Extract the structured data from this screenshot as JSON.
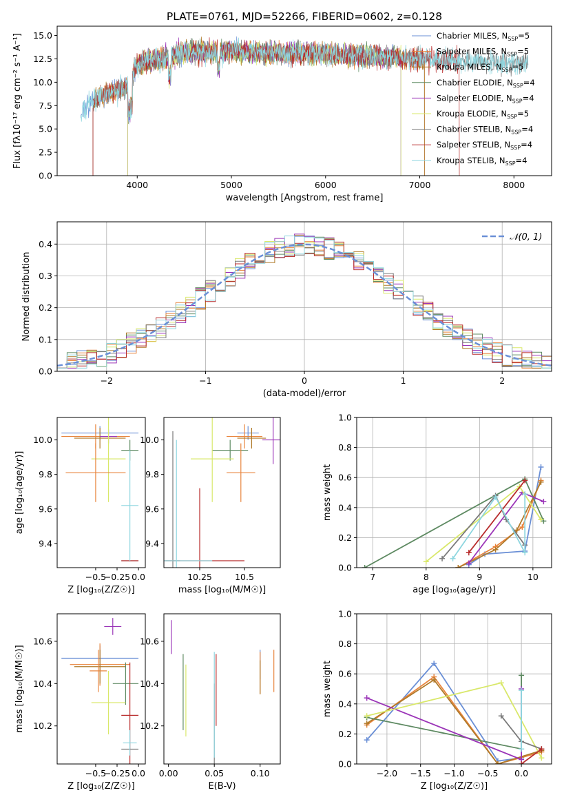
{
  "figure": {
    "title": "PLATE=0761, MJD=52266, FIBERID=0602, z=0.128"
  },
  "colors": {
    "Chabrier MILES": "#6a8fd6",
    "Salpeter MILES": "#e8843c",
    "Kroupa MILES": "#b07a2a",
    "Chabrier ELODIE": "#5e8a62",
    "Salpeter ELODIE": "#9b35b8",
    "Kroupa ELODIE": "#d9e86a",
    "Chabrier STELIB": "#7a7a7a",
    "Salpeter STELIB": "#b82c2c",
    "Kroupa STELIB": "#8ed6df",
    "normal_curve": "#6a8fd6"
  },
  "chart_data": [
    {
      "id": "spectrum",
      "type": "line",
      "xlabel": "wavelength [Angstrom, rest frame]",
      "ylabel": "Flux [fλ10⁻¹⁷ erg cm⁻² s⁻¹ A⁻¹]",
      "xlim": [
        3150,
        8400
      ],
      "ylim": [
        0,
        16
      ],
      "xticks": [
        4000,
        5000,
        6000,
        7000,
        8000
      ],
      "yticks": [
        0.0,
        2.5,
        5.0,
        7.5,
        10.0,
        12.5,
        15.0
      ],
      "legend_position": "upper-right",
      "series": [
        {
          "name": "Chabrier MILES, N_SSP=5",
          "x_range": [
            3400,
            7050
          ]
        },
        {
          "name": "Salpeter MILES, N_SSP=5",
          "x_range": [
            3530,
            7050
          ]
        },
        {
          "name": "Kroupa MILES, N_SSP=5",
          "x_range": [
            3530,
            7050
          ]
        },
        {
          "name": "Chabrier ELODIE, N_SSP=4",
          "x_range": [
            3900,
            6800
          ]
        },
        {
          "name": "Salpeter ELODIE, N_SSP=4",
          "x_range": [
            3900,
            6800
          ]
        },
        {
          "name": "Kroupa ELODIE, N_SSP=5",
          "x_range": [
            3900,
            6800
          ]
        },
        {
          "name": "Chabrier STELIB, N_SSP=4",
          "x_range": [
            3530,
            8150
          ]
        },
        {
          "name": "Salpeter STELIB, N_SSP=4",
          "x_range": [
            3530,
            7420
          ]
        },
        {
          "name": "Kroupa STELIB, N_SSP=4",
          "x_range": [
            3400,
            8150
          ]
        }
      ],
      "approx_continuum": [
        [
          3400,
          7.0
        ],
        [
          3600,
          8.5
        ],
        [
          3900,
          9.5
        ],
        [
          4000,
          12.0
        ],
        [
          4300,
          12.5
        ],
        [
          4500,
          13.2
        ],
        [
          5000,
          13.3
        ],
        [
          6000,
          13.0
        ],
        [
          7000,
          12.5
        ],
        [
          8000,
          12.0
        ]
      ]
    },
    {
      "id": "residual_hist",
      "type": "histogram",
      "xlabel": "(data-model)/error",
      "ylabel": "Normed distribution",
      "xlim": [
        -2.5,
        2.5
      ],
      "ylim": [
        0,
        0.47
      ],
      "xticks": [
        -2,
        -1,
        0,
        1,
        2
      ],
      "yticks": [
        0.0,
        0.1,
        0.2,
        0.3,
        0.4
      ],
      "grid": true,
      "legend_position": "upper-right",
      "normal_label": "𝒩(0, 1)",
      "bin_width": 0.1,
      "series_names": [
        "Chabrier MILES",
        "Salpeter MILES",
        "Kroupa MILES",
        "Chabrier ELODIE",
        "Salpeter ELODIE",
        "Kroupa ELODIE",
        "Chabrier STELIB",
        "Salpeter STELIB",
        "Kroupa STELIB"
      ]
    },
    {
      "id": "age_vs_Z",
      "type": "errorbar",
      "xlabel": "Z [log₁₀(Z/Z☉)]",
      "ylabel": "age  [log₁₀(age/yr)]",
      "xlim": [
        -0.95,
        0.08
      ],
      "ylim": [
        9.26,
        10.13
      ],
      "xticks": [
        -0.5,
        -0.25,
        0.0
      ],
      "xticklabels": [
        "−0.5",
        "−0.25",
        "0.0"
      ],
      "yticks": [
        9.4,
        9.6,
        9.8,
        10.0
      ],
      "points": [
        {
          "series": "Chabrier MILES",
          "x": -0.45,
          "xerr": 0.45,
          "y": 10.04,
          "yerr": 0.04
        },
        {
          "series": "Salpeter MILES",
          "x": -0.5,
          "xerr": 0.4,
          "y": 10.02,
          "yerr": 0.07
        },
        {
          "series": "Kroupa MILES",
          "x": -0.45,
          "xerr": 0.3,
          "y": 10.01,
          "yerr": 0.06
        },
        {
          "series": "Chabrier ELODIE",
          "x": -0.1,
          "xerr": 0.1,
          "y": 9.94,
          "yerr": 0.06
        },
        {
          "series": "Salpeter ELODIE",
          "x": -0.35,
          "xerr": 0.1,
          "y": 10.02,
          "yerr": 0.04
        },
        {
          "series": "Kroupa ELODIE",
          "x": -0.35,
          "xerr": 0.2,
          "y": 9.89,
          "yerr": 0.25
        },
        {
          "series": "Chabrier STELIB",
          "x": -0.1,
          "xerr": 0.1,
          "y": 9.3,
          "yerr": 0.0
        },
        {
          "series": "Salpeter STELIB",
          "x": -0.1,
          "xerr": 0.1,
          "y": 9.3,
          "yerr": 0.0
        },
        {
          "series": "Kroupa STELIB",
          "x": -0.1,
          "xerr": 0.1,
          "y": 9.62,
          "yerr": 0.32
        },
        {
          "series": "Salpeter MILES",
          "x": -0.5,
          "xerr": 0.35,
          "y": 9.81,
          "yerr": 0.17
        }
      ]
    },
    {
      "id": "age_vs_mass",
      "type": "errorbar",
      "xlabel": "mass [log₁₀(M/M☉)]",
      "xlim": [
        10.05,
        10.7
      ],
      "ylim": [
        9.26,
        10.13
      ],
      "xticks": [
        10.25,
        10.5
      ],
      "yticks": [
        9.4,
        9.6,
        9.8,
        10.0
      ],
      "points": [
        {
          "series": "Chabrier MILES",
          "x": 10.52,
          "xerr": 0.06,
          "y": 10.04,
          "yerr": 0.04
        },
        {
          "series": "Salpeter MILES",
          "x": 10.5,
          "xerr": 0.1,
          "y": 10.02,
          "yerr": 0.07
        },
        {
          "series": "Kroupa MILES",
          "x": 10.54,
          "xerr": 0.08,
          "y": 10.01,
          "yerr": 0.06
        },
        {
          "series": "Chabrier ELODIE",
          "x": 10.42,
          "xerr": 0.1,
          "y": 9.94,
          "yerr": 0.06
        },
        {
          "series": "Salpeter ELODIE",
          "x": 10.66,
          "xerr": 0.06,
          "y": 10.0,
          "yerr": 0.14
        },
        {
          "series": "Kroupa ELODIE",
          "x": 10.32,
          "xerr": 0.12,
          "y": 9.89,
          "yerr": 0.25
        },
        {
          "series": "Chabrier STELIB",
          "x": 10.1,
          "xerr": 0.04,
          "y": 9.3,
          "yerr": 0.75
        },
        {
          "series": "Salpeter STELIB",
          "x": 10.25,
          "xerr": 0.25,
          "y": 9.3,
          "yerr": 0.42
        },
        {
          "series": "Kroupa STELIB",
          "x": 10.12,
          "xerr": 0.2,
          "y": 9.3,
          "yerr": 0.7
        },
        {
          "series": "Salpeter MILES",
          "x": 10.48,
          "xerr": 0.08,
          "y": 9.81,
          "yerr": 0.17
        }
      ]
    },
    {
      "id": "weights_vs_age",
      "type": "line",
      "xlabel": "age  [log₁₀(age/yr)]",
      "ylabel": "mass weight",
      "xlim": [
        6.7,
        10.35
      ],
      "ylim": [
        0,
        1
      ],
      "xticks": [
        7,
        8,
        9,
        10
      ],
      "yticks": [
        0.0,
        0.2,
        0.4,
        0.6,
        0.8,
        1.0
      ],
      "grid": true,
      "series": [
        {
          "name": "Chabrier MILES",
          "x": [
            10.15,
            9.85,
            9.1,
            8.8
          ],
          "y": [
            0.67,
            0.11,
            0.09,
            0.02
          ]
        },
        {
          "name": "Salpeter MILES",
          "x": [
            10.15,
            9.8,
            9.3,
            8.6
          ],
          "y": [
            0.58,
            0.27,
            0.14,
            0.0
          ]
        },
        {
          "name": "Kroupa MILES",
          "x": [
            10.15,
            9.7,
            9.3,
            8.6
          ],
          "y": [
            0.57,
            0.25,
            0.12,
            0.0
          ]
        },
        {
          "name": "Chabrier ELODIE",
          "x": [
            6.85,
            9.85,
            10.2
          ],
          "y": [
            0.0,
            0.59,
            0.31
          ]
        },
        {
          "name": "Salpeter ELODIE",
          "x": [
            8.8,
            9.8,
            10.2
          ],
          "y": [
            0.03,
            0.5,
            0.44
          ]
        },
        {
          "name": "Kroupa ELODIE",
          "x": [
            8.0,
            9.75,
            10.15
          ],
          "y": [
            0.04,
            0.54,
            0.32
          ]
        },
        {
          "name": "Chabrier STELIB",
          "x": [
            8.3,
            9.3,
            9.5,
            9.85
          ],
          "y": [
            0.06,
            0.48,
            0.32,
            0.15
          ]
        },
        {
          "name": "Salpeter STELIB",
          "x": [
            8.8,
            9.85
          ],
          "y": [
            0.1,
            0.58
          ]
        },
        {
          "name": "Kroupa STELIB",
          "x": [
            8.5,
            9.3,
            9.85,
            9.85
          ],
          "y": [
            0.06,
            0.47,
            0.1,
            0.49
          ]
        }
      ]
    },
    {
      "id": "mass_vs_Z",
      "type": "errorbar",
      "xlabel": "Z [log₁₀(Z/Z☉)]",
      "ylabel": "mass [log₁₀(M/M☉)]",
      "xlim": [
        -0.95,
        0.08
      ],
      "ylim": [
        10.02,
        10.73
      ],
      "xticks": [
        -0.5,
        -0.25,
        0.0
      ],
      "xticklabels": [
        "−0.5",
        "−0.25",
        "0.0"
      ],
      "yticks": [
        10.2,
        10.4,
        10.6
      ],
      "points": [
        {
          "series": "Chabrier MILES",
          "x": -0.45,
          "xerr": 0.45,
          "y": 10.52,
          "yerr": 0.06
        },
        {
          "series": "Salpeter MILES",
          "x": -0.45,
          "xerr": 0.35,
          "y": 10.49,
          "yerr": 0.1
        },
        {
          "series": "Kroupa MILES",
          "x": -0.45,
          "xerr": 0.3,
          "y": 10.48,
          "yerr": 0.08
        },
        {
          "series": "Chabrier ELODIE",
          "x": -0.15,
          "xerr": 0.15,
          "y": 10.4,
          "yerr": 0.1
        },
        {
          "series": "Salpeter ELODIE",
          "x": -0.3,
          "xerr": 0.1,
          "y": 10.67,
          "yerr": 0.04
        },
        {
          "series": "Kroupa ELODIE",
          "x": -0.35,
          "xerr": 0.2,
          "y": 10.31,
          "yerr": 0.15
        },
        {
          "series": "Chabrier STELIB",
          "x": -0.1,
          "xerr": 0.1,
          "y": 10.09,
          "yerr": 0.0
        },
        {
          "series": "Salpeter STELIB",
          "x": -0.1,
          "xerr": 0.1,
          "y": 10.25,
          "yerr": 0.25
        },
        {
          "series": "Kroupa STELIB",
          "x": -0.1,
          "xerr": 0.08,
          "y": 10.12,
          "yerr": 0.06
        },
        {
          "series": "Salpeter MILES",
          "x": -0.47,
          "xerr": 0.1,
          "y": 10.46,
          "yerr": 0.1
        }
      ]
    },
    {
      "id": "mass_vs_ebv",
      "type": "errorbar",
      "xlabel": "E(B-V)",
      "xlim": [
        -0.005,
        0.122
      ],
      "ylim": [
        10.02,
        10.73
      ],
      "xticks": [
        0.0,
        0.05,
        0.1
      ],
      "xticklabels": [
        "0.00",
        "0.05",
        "0.10"
      ],
      "yticks": [
        10.2,
        10.4,
        10.6
      ],
      "points": [
        {
          "series": "Salpeter ELODIE",
          "x": 0.003,
          "y": 10.62,
          "yerr": 0.08
        },
        {
          "series": "Chabrier ELODIE",
          "x": 0.016,
          "y": 10.36,
          "yerr": 0.18
        },
        {
          "series": "Kroupa ELODIE",
          "x": 0.019,
          "y": 10.32,
          "yerr": 0.17
        },
        {
          "series": "Chabrier STELIB",
          "x": 0.05,
          "y": 10.2,
          "yerr": 0.2
        },
        {
          "series": "Salpeter STELIB",
          "x": 0.052,
          "y": 10.37,
          "yerr": 0.17
        },
        {
          "series": "Kroupa STELIB",
          "x": 0.05,
          "y": 10.3,
          "yerr": 0.25
        },
        {
          "series": "Chabrier MILES",
          "x": 0.1,
          "y": 10.49,
          "yerr": 0.07
        },
        {
          "series": "Salpeter MILES",
          "x": 0.1,
          "y": 10.45,
          "yerr": 0.1
        },
        {
          "series": "Kroupa MILES",
          "x": 0.1,
          "y": 10.43,
          "yerr": 0.08
        },
        {
          "series": "Salpeter MILES",
          "x": 0.115,
          "y": 10.46,
          "yerr": 0.1
        }
      ]
    },
    {
      "id": "weights_vs_Z",
      "type": "line",
      "xlabel": "Z [log₁₀(Z/Z☉)]",
      "ylabel": "mass weight",
      "xlim": [
        -2.45,
        0.45
      ],
      "ylim": [
        0,
        1
      ],
      "xticks": [
        -2.0,
        -1.5,
        -1.0,
        -0.5,
        0.0
      ],
      "xticklabels": [
        "−2.0",
        "−1.5",
        "−1.0",
        "−0.5",
        "0.0"
      ],
      "yticks": [
        0.0,
        0.2,
        0.4,
        0.6,
        0.8,
        1.0
      ],
      "grid": true,
      "series": [
        {
          "name": "Chabrier MILES",
          "x": [
            -2.3,
            -1.3,
            -0.35,
            0.0
          ],
          "y": [
            0.16,
            0.67,
            0.02,
            0.04
          ]
        },
        {
          "name": "Salpeter MILES",
          "x": [
            -2.3,
            -1.3,
            -0.35,
            0.3
          ],
          "y": [
            0.26,
            0.58,
            0.0,
            0.08
          ]
        },
        {
          "name": "Kroupa MILES",
          "x": [
            -2.3,
            -1.3,
            -0.35,
            0.3
          ],
          "y": [
            0.27,
            0.56,
            0.0,
            0.09
          ]
        },
        {
          "name": "Chabrier ELODIE",
          "x": [
            -2.3,
            0.0,
            0.0
          ],
          "y": [
            0.31,
            0.1,
            0.59
          ]
        },
        {
          "name": "Salpeter ELODIE",
          "x": [
            -2.3,
            0.0,
            0.0
          ],
          "y": [
            0.44,
            0.03,
            0.5
          ]
        },
        {
          "name": "Kroupa ELODIE",
          "x": [
            -2.3,
            -0.3,
            0.3
          ],
          "y": [
            0.32,
            0.54,
            0.04
          ]
        },
        {
          "name": "Chabrier STELIB",
          "x": [
            -0.3,
            0.0,
            0.3
          ],
          "y": [
            0.32,
            0.15,
            0.1
          ]
        },
        {
          "name": "Salpeter STELIB",
          "x": [
            0.0,
            0.3
          ],
          "y": [
            0.0,
            0.1
          ]
        },
        {
          "name": "Kroupa STELIB",
          "x": [
            0.0,
            0.0
          ],
          "y": [
            0.49,
            0.1
          ]
        }
      ]
    }
  ]
}
